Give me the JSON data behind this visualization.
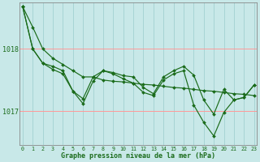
{
  "bg_color": "#c8e8e8",
  "grid_color_h": "#ff9999",
  "grid_color_v": "#99cccc",
  "line_color": "#1a6b1a",
  "xlabel": "Graphe pression niveau de la mer (hPa)",
  "yticks": [
    1017,
    1018
  ],
  "ylim": [
    1016.45,
    1018.75
  ],
  "xlim": [
    -0.3,
    23.3
  ],
  "series1": [
    1018.68,
    1018.35,
    1018.0,
    1017.85,
    1017.75,
    1017.65,
    1017.55,
    1017.55,
    1017.5,
    1017.48,
    1017.47,
    1017.45,
    1017.43,
    1017.42,
    1017.4,
    1017.38,
    1017.37,
    1017.35,
    1017.33,
    1017.32,
    1017.3,
    1017.28,
    1017.27,
    1017.25
  ],
  "series2": [
    1018.68,
    1018.0,
    1017.77,
    1017.72,
    1017.65,
    1017.32,
    1017.2,
    1017.55,
    1017.65,
    1017.62,
    1017.57,
    1017.55,
    1017.38,
    1017.28,
    1017.55,
    1017.65,
    1017.72,
    1017.58,
    1017.18,
    1016.95,
    1017.35,
    1017.18,
    1017.22,
    1017.42
  ],
  "series3": [
    1018.68,
    1018.0,
    1017.77,
    1017.67,
    1017.6,
    1017.32,
    1017.12,
    1017.48,
    1017.65,
    1017.6,
    1017.52,
    1017.45,
    1017.3,
    1017.25,
    1017.5,
    1017.6,
    1017.65,
    1017.1,
    1016.82,
    1016.6,
    1016.98,
    1017.18,
    1017.22,
    1017.42
  ],
  "xticks": [
    0,
    1,
    2,
    3,
    4,
    5,
    6,
    7,
    8,
    9,
    10,
    11,
    12,
    13,
    14,
    15,
    16,
    17,
    18,
    19,
    20,
    21,
    22,
    23
  ]
}
